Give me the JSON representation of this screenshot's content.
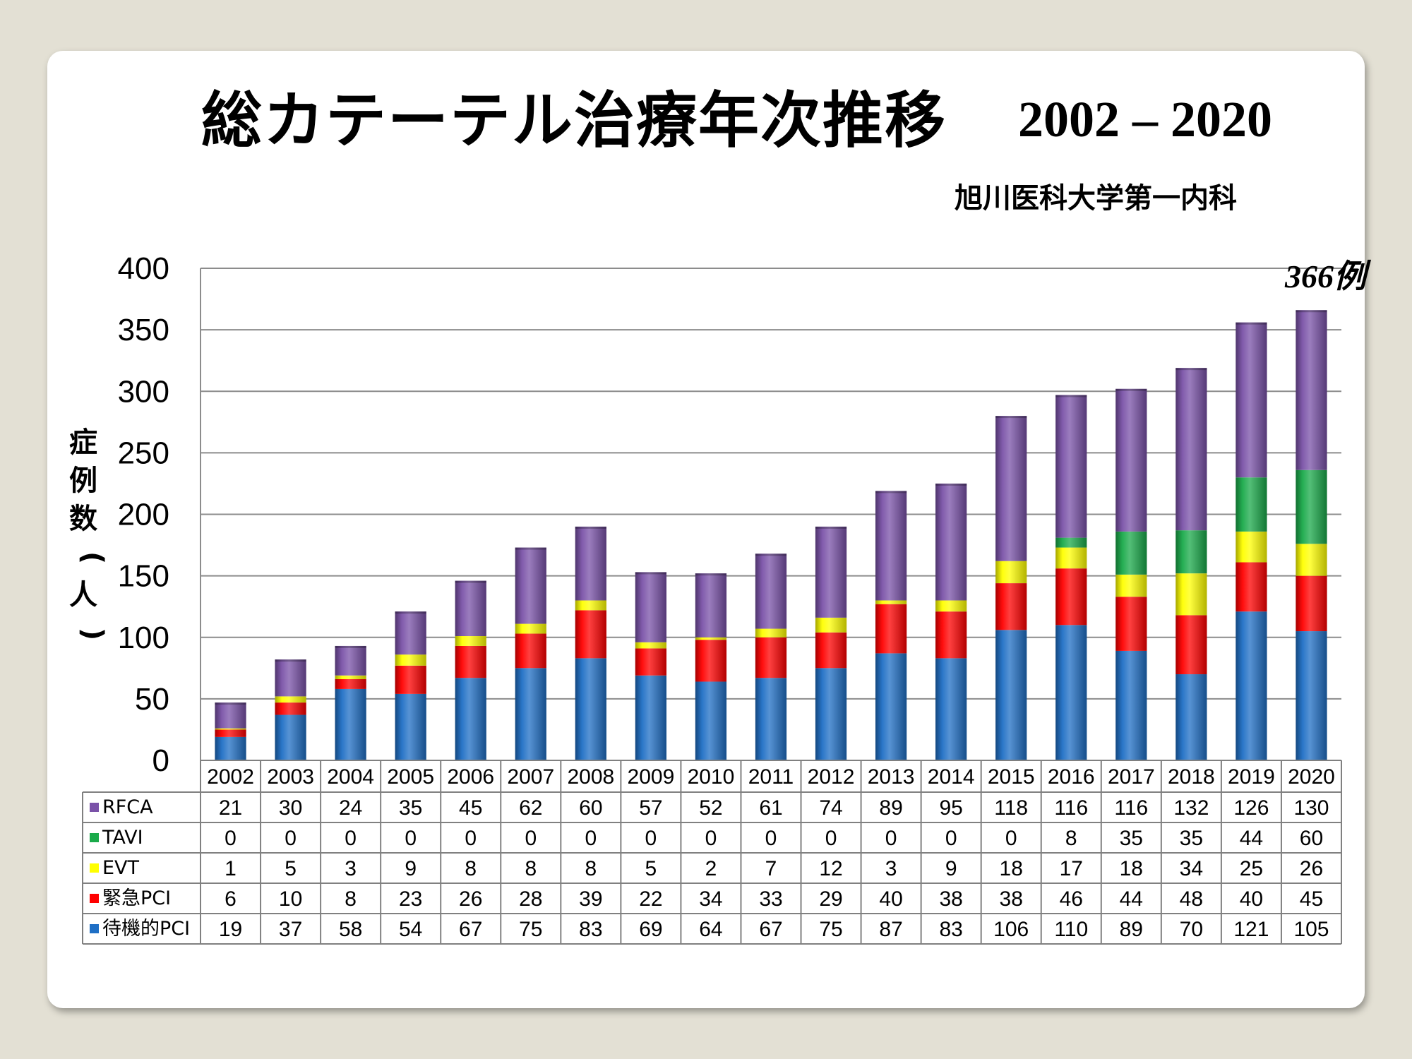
{
  "slide": {
    "title": "総カテーテル治療年次推移",
    "years": "2002 – 2020",
    "org": "旭川医科大学第一内科"
  },
  "chart_data": {
    "type": "bar",
    "stacked": true,
    "ylabel": "症例数（人）",
    "ylim": [
      0,
      400
    ],
    "yticks": [
      0,
      50,
      100,
      150,
      200,
      250,
      300,
      350,
      400
    ],
    "grid": true,
    "legend": "table",
    "annotation": "366例",
    "categories": [
      "2002",
      "2003",
      "2004",
      "2005",
      "2006",
      "2007",
      "2008",
      "2009",
      "2010",
      "2011",
      "2012",
      "2013",
      "2014",
      "2015",
      "2016",
      "2017",
      "2018",
      "2019",
      "2020"
    ],
    "series": [
      {
        "name": "待機的PCI",
        "color": "#1f6fc5",
        "values": [
          19,
          37,
          58,
          54,
          67,
          75,
          83,
          69,
          64,
          67,
          75,
          87,
          83,
          106,
          110,
          89,
          70,
          121,
          105
        ]
      },
      {
        "name": "緊急PCI",
        "color": "#ff0000",
        "values": [
          6,
          10,
          8,
          23,
          26,
          28,
          39,
          22,
          34,
          33,
          29,
          40,
          38,
          38,
          46,
          44,
          48,
          40,
          45
        ]
      },
      {
        "name": "EVT",
        "color": "#ffff00",
        "values": [
          1,
          5,
          3,
          9,
          8,
          8,
          8,
          5,
          2,
          7,
          12,
          3,
          9,
          18,
          17,
          18,
          34,
          25,
          26
        ]
      },
      {
        "name": "TAVI",
        "color": "#1aaa4a",
        "values": [
          0,
          0,
          0,
          0,
          0,
          0,
          0,
          0,
          0,
          0,
          0,
          0,
          0,
          0,
          8,
          35,
          35,
          44,
          60
        ]
      },
      {
        "name": "RFCA",
        "color": "#7a52a8",
        "values": [
          21,
          30,
          24,
          35,
          45,
          62,
          60,
          57,
          52,
          61,
          74,
          89,
          95,
          118,
          116,
          116,
          132,
          126,
          130
        ]
      }
    ]
  }
}
